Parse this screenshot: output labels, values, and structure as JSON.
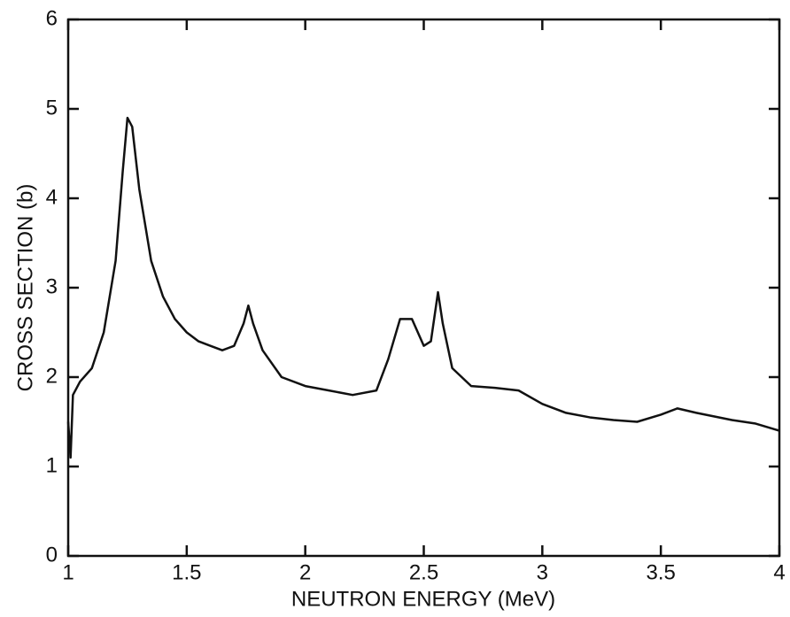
{
  "chart_data": {
    "type": "line",
    "x_label": "NEUTRON ENERGY (MeV)",
    "y_label": "CROSS SECTION (b)",
    "x": [
      1.0,
      1.01,
      1.02,
      1.05,
      1.1,
      1.15,
      1.2,
      1.23,
      1.25,
      1.27,
      1.3,
      1.35,
      1.4,
      1.45,
      1.5,
      1.55,
      1.6,
      1.65,
      1.7,
      1.74,
      1.76,
      1.78,
      1.82,
      1.9,
      2.0,
      2.1,
      2.2,
      2.3,
      2.35,
      2.4,
      2.45,
      2.5,
      2.53,
      2.56,
      2.58,
      2.62,
      2.7,
      2.8,
      2.9,
      3.0,
      3.1,
      3.2,
      3.3,
      3.4,
      3.5,
      3.57,
      3.65,
      3.8,
      3.9,
      4.0
    ],
    "series": [
      {
        "color": "#111111",
        "values": [
          1.5,
          1.1,
          1.8,
          1.95,
          2.1,
          2.5,
          3.3,
          4.3,
          4.9,
          4.8,
          4.1,
          3.3,
          2.9,
          2.65,
          2.5,
          2.4,
          2.35,
          2.3,
          2.35,
          2.6,
          2.8,
          2.6,
          2.3,
          2.0,
          1.9,
          1.85,
          1.8,
          1.85,
          2.2,
          2.65,
          2.65,
          2.35,
          2.4,
          2.95,
          2.6,
          2.1,
          1.9,
          1.88,
          1.85,
          1.7,
          1.6,
          1.55,
          1.52,
          1.5,
          1.58,
          1.65,
          1.6,
          1.52,
          1.48,
          1.4
        ]
      }
    ],
    "xlim": [
      1,
      4
    ],
    "xticks": [
      1,
      1.5,
      2,
      2.5,
      3,
      3.5,
      4
    ],
    "ylim": [
      0,
      6
    ],
    "yticks": [
      0,
      1,
      2,
      3,
      4,
      5,
      6
    ]
  }
}
